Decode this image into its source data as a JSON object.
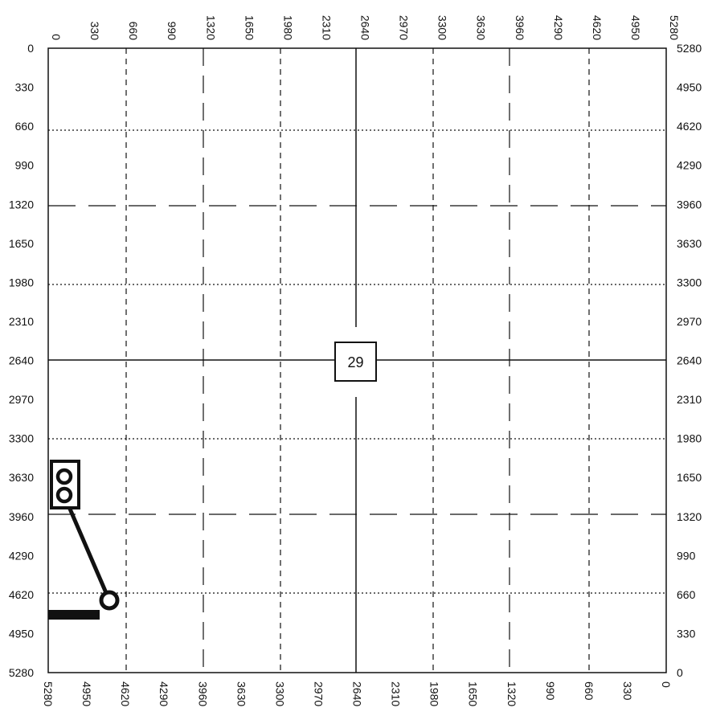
{
  "axes": {
    "top": [
      "0",
      "330",
      "660",
      "990",
      "1320",
      "1650",
      "1980",
      "2310",
      "2640",
      "2970",
      "3300",
      "3630",
      "3960",
      "4290",
      "4620",
      "4950",
      "5280"
    ],
    "bottom": [
      "5280",
      "4950",
      "4620",
      "4290",
      "3960",
      "3630",
      "3300",
      "2970",
      "2640",
      "2310",
      "1980",
      "1650",
      "1320",
      "990",
      "660",
      "330",
      "0"
    ],
    "left": [
      "0",
      "330",
      "660",
      "990",
      "1320",
      "1650",
      "1980",
      "2310",
      "2640",
      "2970",
      "3300",
      "3630",
      "3960",
      "4290",
      "4620",
      "4950",
      "5280"
    ],
    "right": [
      "5280",
      "4950",
      "4620",
      "4290",
      "3960",
      "3630",
      "3300",
      "2970",
      "2640",
      "2310",
      "1980",
      "1650",
      "1320",
      "990",
      "660",
      "330",
      "0"
    ]
  },
  "section_label": "29",
  "colors": {
    "line": "#111111",
    "background": "#ffffff"
  }
}
